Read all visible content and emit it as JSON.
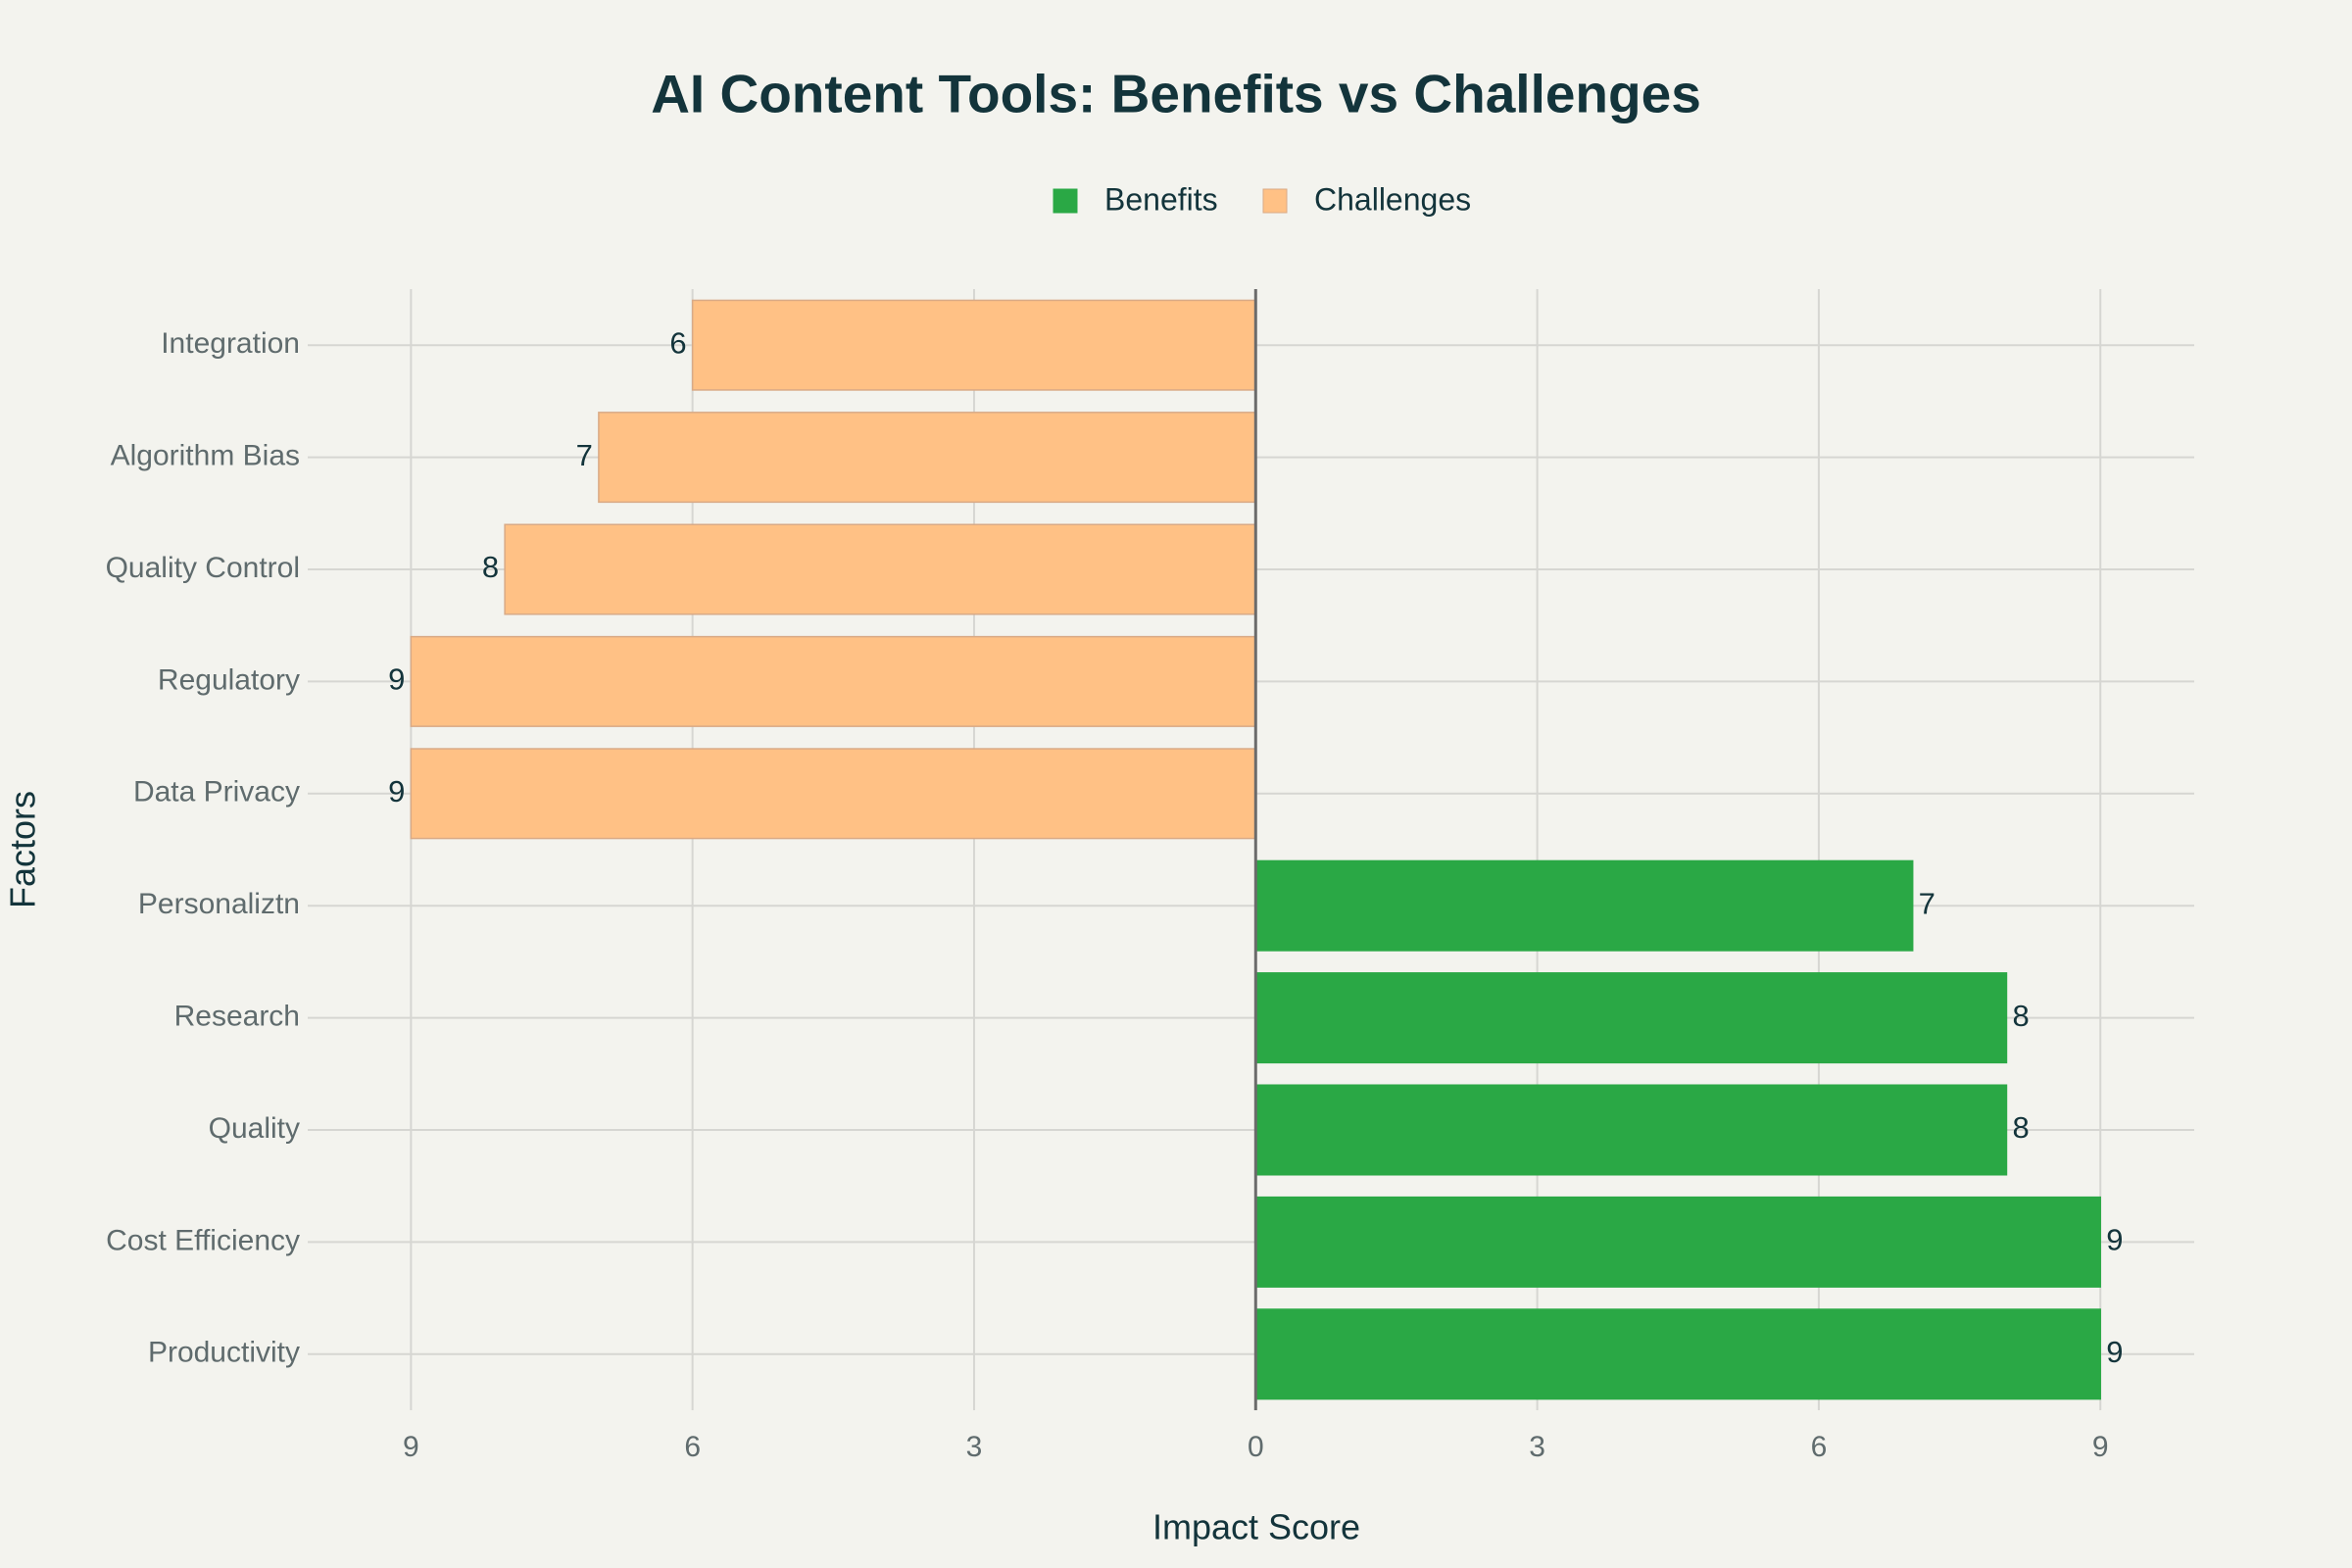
{
  "chart_data": {
    "type": "bar",
    "orientation": "horizontal",
    "title": "AI Content Tools: Benefits vs Challenges",
    "x_label": "Impact Score",
    "y_label": "Factors",
    "categories": [
      "Productivity",
      "Cost Efficiency",
      "Quality",
      "Research",
      "Personaliztn",
      "Data Privacy",
      "Regulatory",
      "Quality Control",
      "Algorithm Bias",
      "Integration"
    ],
    "series": [
      {
        "name": "Benefits",
        "color": "#2aa845",
        "values": [
          9,
          9,
          8,
          8,
          7,
          null,
          null,
          null,
          null,
          null
        ]
      },
      {
        "name": "Challenges",
        "color": "#ffc185",
        "values": [
          null,
          null,
          null,
          null,
          null,
          -9,
          -9,
          -8,
          -7,
          -6
        ],
        "value_labels": [
          null,
          null,
          null,
          null,
          null,
          "9",
          "9",
          "8",
          "7",
          "6"
        ]
      }
    ],
    "xlim": [
      -10.1,
      10
    ],
    "xticks": [
      {
        "value": -9,
        "label": "9"
      },
      {
        "value": -6,
        "label": "6"
      },
      {
        "value": -3,
        "label": "3"
      },
      0,
      3,
      6,
      9
    ],
    "grid": true,
    "legend": "top"
  }
}
